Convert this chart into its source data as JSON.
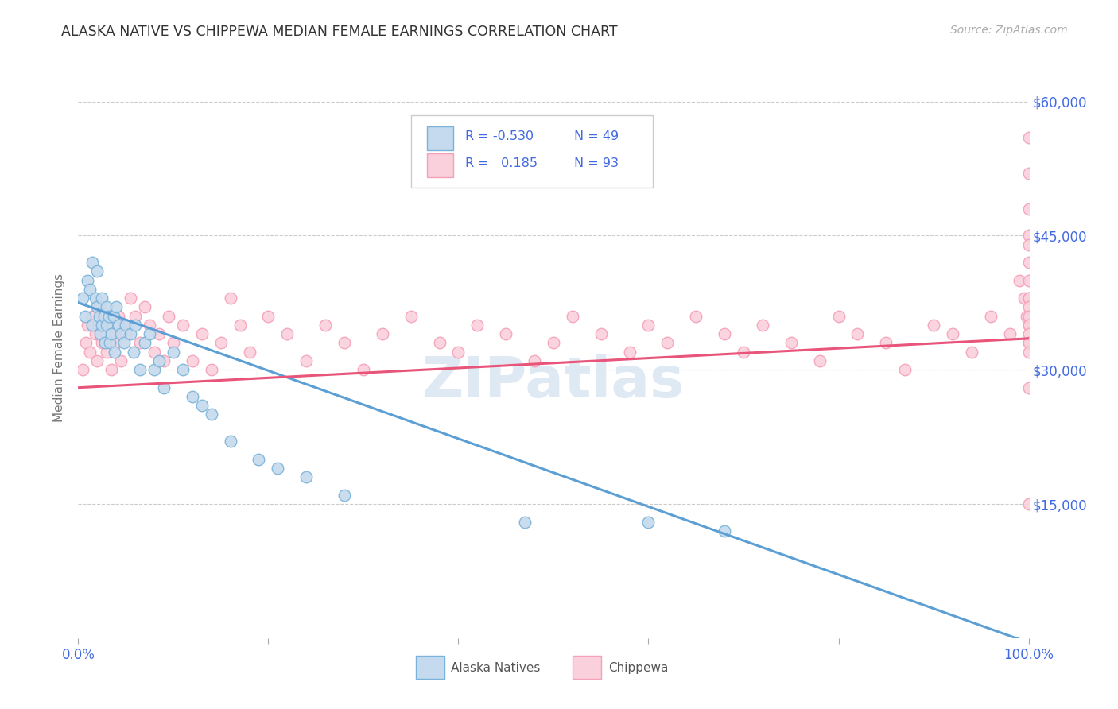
{
  "title": "ALASKA NATIVE VS CHIPPEWA MEDIAN FEMALE EARNINGS CORRELATION CHART",
  "source": "Source: ZipAtlas.com",
  "ylabel": "Median Female Earnings",
  "watermark": "ZIPatlas",
  "color_blue_edge": "#7ab3d9",
  "color_blue_fill": "#c5daee",
  "color_pink_edge": "#f5a0b8",
  "color_pink_fill": "#fad0dc",
  "color_line_blue": "#5b9fd4",
  "color_line_pink": "#e8547a",
  "color_axis_label": "#4169E1",
  "color_title": "#333333",
  "color_source": "#aaaaaa",
  "color_ylabel": "#777777",
  "color_grid": "#cccccc",
  "color_legend_edge": "#cccccc",
  "alaska_x": [
    0.005,
    0.007,
    0.01,
    0.012,
    0.015,
    0.015,
    0.018,
    0.02,
    0.02,
    0.022,
    0.023,
    0.025,
    0.025,
    0.027,
    0.028,
    0.03,
    0.03,
    0.032,
    0.033,
    0.035,
    0.037,
    0.038,
    0.04,
    0.042,
    0.045,
    0.048,
    0.05,
    0.055,
    0.058,
    0.06,
    0.065,
    0.07,
    0.075,
    0.08,
    0.085,
    0.09,
    0.1,
    0.11,
    0.12,
    0.13,
    0.14,
    0.16,
    0.19,
    0.21,
    0.24,
    0.28,
    0.47,
    0.6,
    0.68
  ],
  "alaska_y": [
    38000,
    36000,
    40000,
    39000,
    42000,
    35000,
    38000,
    37000,
    41000,
    36000,
    34000,
    38000,
    35000,
    36000,
    33000,
    37000,
    35000,
    36000,
    33000,
    34000,
    36000,
    32000,
    37000,
    35000,
    34000,
    33000,
    35000,
    34000,
    32000,
    35000,
    30000,
    33000,
    34000,
    30000,
    31000,
    28000,
    32000,
    30000,
    27000,
    26000,
    25000,
    22000,
    20000,
    19000,
    18000,
    16000,
    13000,
    13000,
    12000
  ],
  "chippewa_x": [
    0.005,
    0.008,
    0.01,
    0.012,
    0.015,
    0.018,
    0.02,
    0.022,
    0.025,
    0.028,
    0.03,
    0.032,
    0.035,
    0.038,
    0.04,
    0.042,
    0.045,
    0.048,
    0.05,
    0.055,
    0.06,
    0.065,
    0.07,
    0.075,
    0.08,
    0.085,
    0.09,
    0.095,
    0.1,
    0.11,
    0.12,
    0.13,
    0.14,
    0.15,
    0.16,
    0.17,
    0.18,
    0.2,
    0.22,
    0.24,
    0.26,
    0.28,
    0.3,
    0.32,
    0.35,
    0.38,
    0.4,
    0.42,
    0.45,
    0.48,
    0.5,
    0.52,
    0.55,
    0.58,
    0.6,
    0.62,
    0.65,
    0.68,
    0.7,
    0.72,
    0.75,
    0.78,
    0.8,
    0.82,
    0.85,
    0.87,
    0.9,
    0.92,
    0.94,
    0.96,
    0.98,
    0.99,
    0.995,
    0.998,
    1.0,
    1.0,
    1.0,
    1.0,
    1.0,
    1.0,
    1.0,
    1.0,
    1.0,
    1.0,
    1.0,
    1.0,
    1.0,
    1.0,
    1.0,
    1.0,
    1.0,
    1.0,
    1.0
  ],
  "chippewa_y": [
    30000,
    33000,
    35000,
    32000,
    36000,
    34000,
    31000,
    37000,
    33000,
    36000,
    32000,
    35000,
    30000,
    34000,
    33000,
    36000,
    31000,
    35000,
    34000,
    38000,
    36000,
    33000,
    37000,
    35000,
    32000,
    34000,
    31000,
    36000,
    33000,
    35000,
    31000,
    34000,
    30000,
    33000,
    38000,
    35000,
    32000,
    36000,
    34000,
    31000,
    35000,
    33000,
    30000,
    34000,
    36000,
    33000,
    32000,
    35000,
    34000,
    31000,
    33000,
    36000,
    34000,
    32000,
    35000,
    33000,
    36000,
    34000,
    32000,
    35000,
    33000,
    31000,
    36000,
    34000,
    33000,
    30000,
    35000,
    34000,
    32000,
    36000,
    34000,
    40000,
    38000,
    36000,
    45000,
    48000,
    42000,
    40000,
    38000,
    35000,
    56000,
    52000,
    44000,
    33000,
    28000,
    38000,
    37000,
    36000,
    35000,
    34000,
    33000,
    32000,
    15000
  ],
  "blue_trend_x0": 0.0,
  "blue_trend_y0": 37500,
  "blue_trend_x1": 1.0,
  "blue_trend_y1": -500,
  "pink_trend_x0": 0.0,
  "pink_trend_y0": 28000,
  "pink_trend_x1": 1.0,
  "pink_trend_y1": 33500,
  "xlim": [
    0.0,
    1.0
  ],
  "ylim": [
    0,
    65000
  ],
  "ytick_positions": [
    15000,
    30000,
    45000,
    60000
  ],
  "ytick_labels": [
    "$15,000",
    "$30,000",
    "$45,000",
    "$60,000"
  ],
  "xtick_positions": [
    0.0,
    0.2,
    0.4,
    0.5,
    0.6,
    0.8,
    1.0
  ],
  "legend_r1_text": "R = -0.530",
  "legend_n1_text": "N = 49",
  "legend_r2_text": "R =   0.185",
  "legend_n2_text": "N = 93"
}
